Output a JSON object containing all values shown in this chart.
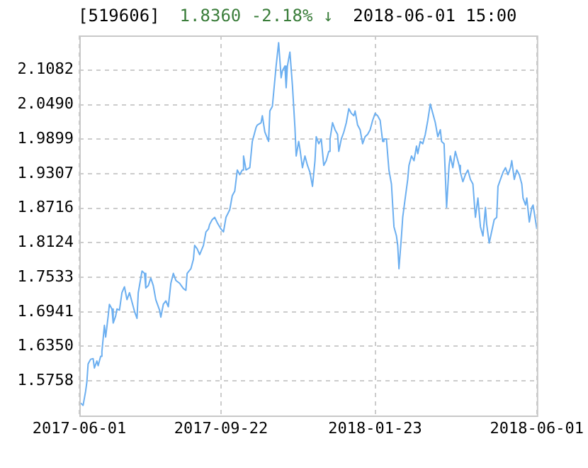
{
  "chart_data": {
    "type": "line",
    "title": "[519606]",
    "subtitle": "1.8360  -2.18% ↓",
    "annotations": [
      "2018-06-01 15:00"
    ],
    "xlim": [
      "2017-06-01",
      "2018-06-01"
    ],
    "xticks": [
      "2017-06-01",
      "2017-09-22",
      "2018-01-23",
      "2018-06-01"
    ],
    "ylim": [
      1.5166,
      2.1674
    ],
    "yticks": [
      1.5758,
      {
        "value": 1.635,
        "label": "1.6350"
      },
      1.6941,
      1.7533,
      1.8124,
      1.8716,
      1.9307,
      1.9899,
      {
        "value": 2.049,
        "label": "2.0490"
      },
      2.1082
    ],
    "grid": true,
    "marker": "none",
    "line_style": "solid",
    "series": [
      {
        "color": "#6caff0",
        "x": [
          "2017-06-02",
          "2017-06-04",
          "2017-06-06",
          "2017-06-07",
          "2017-06-08",
          "2017-06-10",
          "2017-06-12",
          "2017-06-13",
          "2017-06-15",
          "2017-06-16",
          "2017-06-18",
          "2017-06-19",
          "2017-06-21",
          "2017-06-22",
          "2017-06-24",
          "2017-06-25",
          "2017-06-27",
          "2017-06-28",
          "2017-06-30",
          "2017-07-01",
          "2017-07-03",
          "2017-07-05",
          "2017-07-07",
          "2017-07-09",
          "2017-07-11",
          "2017-07-12",
          "2017-07-15",
          "2017-07-17",
          "2017-07-18",
          "2017-07-21",
          "2017-07-23",
          "2017-07-24",
          "2017-07-26",
          "2017-07-28",
          "2017-07-30",
          "2017-08-01",
          "2017-08-04",
          "2017-08-05",
          "2017-08-07",
          "2017-08-09",
          "2017-08-11",
          "2017-08-13",
          "2017-08-15",
          "2017-08-17",
          "2017-08-20",
          "2017-08-23",
          "2017-08-25",
          "2017-08-26",
          "2017-08-29",
          "2017-08-31",
          "2017-09-01",
          "2017-09-03",
          "2017-09-05",
          "2017-09-08",
          "2017-09-10",
          "2017-09-12",
          "2017-09-13",
          "2017-09-15",
          "2017-09-17",
          "2017-09-19",
          "2017-09-22",
          "2017-09-24",
          "2017-09-26",
          "2017-09-29",
          "2017-10-01",
          "2017-10-03",
          "2017-10-05",
          "2017-10-07",
          "2017-10-09",
          "2017-10-10",
          "2017-10-12",
          "2017-10-15",
          "2017-10-17",
          "2017-10-20",
          "2017-10-21",
          "2017-10-24",
          "2017-10-25",
          "2017-10-27",
          "2017-10-30",
          "2017-10-31",
          "2017-11-02",
          "2017-11-05",
          "2017-11-07",
          "2017-11-09",
          "2017-11-10",
          "2017-11-12",
          "2017-11-13",
          "2017-11-14",
          "2017-11-16",
          "2017-11-18",
          "2017-11-20",
          "2017-11-21",
          "2017-11-23",
          "2017-11-24",
          "2017-11-26",
          "2017-11-28",
          "2017-11-30",
          "2017-12-02",
          "2017-12-04",
          "2017-12-06",
          "2017-12-07",
          "2017-12-09",
          "2017-12-11",
          "2017-12-13",
          "2017-12-15",
          "2017-12-17",
          "2017-12-18",
          "2017-12-20",
          "2017-12-22",
          "2017-12-24",
          "2017-12-25",
          "2017-12-27",
          "2017-12-29",
          "2017-12-31",
          "2018-01-02",
          "2018-01-04",
          "2018-01-06",
          "2018-01-07",
          "2018-01-09",
          "2018-01-11",
          "2018-01-13",
          "2018-01-15",
          "2018-01-17",
          "2018-01-19",
          "2018-01-21",
          "2018-01-23",
          "2018-01-25",
          "2018-01-27",
          "2018-01-29",
          "2018-01-30",
          "2018-02-01",
          "2018-02-03",
          "2018-02-05",
          "2018-02-07",
          "2018-02-09",
          "2018-02-10",
          "2018-02-11",
          "2018-02-13",
          "2018-02-14",
          "2018-02-16",
          "2018-02-18",
          "2018-02-19",
          "2018-02-21",
          "2018-02-23",
          "2018-02-25",
          "2018-02-26",
          "2018-02-28",
          "2018-03-02",
          "2018-03-04",
          "2018-03-06",
          "2018-03-08",
          "2018-03-10",
          "2018-03-12",
          "2018-03-14",
          "2018-03-16",
          "2018-03-17",
          "2018-03-19",
          "2018-03-21",
          "2018-03-23",
          "2018-03-24",
          "2018-03-26",
          "2018-03-28",
          "2018-03-31",
          "2018-04-01",
          "2018-04-03",
          "2018-04-05",
          "2018-04-07",
          "2018-04-09",
          "2018-04-11",
          "2018-04-13",
          "2018-04-15",
          "2018-04-17",
          "2018-04-19",
          "2018-04-21",
          "2018-04-22",
          "2018-04-24",
          "2018-04-26",
          "2018-04-28",
          "2018-04-30",
          "2018-05-01",
          "2018-05-03",
          "2018-05-05",
          "2018-05-07",
          "2018-05-09",
          "2018-05-11",
          "2018-05-12",
          "2018-05-14",
          "2018-05-16",
          "2018-05-18",
          "2018-05-20",
          "2018-05-21",
          "2018-05-23",
          "2018-05-24",
          "2018-05-26",
          "2018-05-28",
          "2018-05-29",
          "2018-06-01"
        ],
        "values": [
          1.538,
          1.534,
          1.558,
          1.574,
          1.605,
          1.613,
          1.614,
          1.598,
          1.61,
          1.602,
          1.618,
          1.626,
          1.671,
          1.651,
          1.687,
          1.707,
          1.699,
          1.675,
          1.687,
          1.699,
          1.697,
          1.727,
          1.737,
          1.715,
          1.727,
          1.719,
          1.695,
          1.683,
          1.727,
          1.764,
          1.76,
          1.735,
          1.739,
          1.752,
          1.739,
          1.715,
          1.697,
          1.685,
          1.707,
          1.713,
          1.703,
          1.743,
          1.76,
          1.748,
          1.743,
          1.734,
          1.731,
          1.76,
          1.768,
          1.784,
          1.808,
          1.802,
          1.792,
          1.808,
          1.831,
          1.836,
          1.844,
          1.852,
          1.856,
          1.847,
          1.836,
          1.831,
          1.856,
          1.869,
          1.893,
          1.901,
          1.937,
          1.929,
          1.937,
          1.961,
          1.937,
          1.941,
          1.986,
          2.01,
          2.014,
          2.018,
          2.03,
          2.002,
          1.986,
          2.038,
          2.046,
          2.115,
          2.155,
          2.095,
          2.107,
          2.115,
          2.078,
          2.115,
          2.139,
          2.082,
          2.01,
          1.961,
          1.986,
          1.973,
          1.941,
          1.961,
          1.945,
          1.933,
          1.909,
          1.953,
          1.994,
          1.982,
          1.99,
          1.945,
          1.953,
          1.969,
          1.99,
          2.018,
          2.006,
          1.998,
          1.969,
          1.99,
          2.002,
          2.018,
          2.042,
          2.034,
          2.03,
          2.038,
          2.014,
          2.006,
          1.982,
          1.994,
          1.998,
          2.006,
          2.022,
          2.034,
          2.03,
          2.022,
          1.986,
          1.99,
          1.99,
          1.937,
          1.913,
          1.84,
          1.824,
          1.808,
          1.768,
          1.824,
          1.856,
          1.889,
          1.921,
          1.945,
          1.961,
          1.953,
          1.978,
          1.965,
          1.986,
          1.982,
          1.998,
          2.022,
          2.05,
          2.034,
          2.018,
          1.994,
          2.006,
          1.986,
          1.982,
          1.873,
          1.945,
          1.961,
          1.941,
          1.969,
          1.945,
          1.933,
          1.917,
          1.929,
          1.937,
          1.921,
          1.913,
          1.856,
          1.889,
          1.84,
          1.824,
          1.873,
          1.844,
          1.812,
          1.832,
          1.852,
          1.856,
          1.909,
          1.921,
          1.933,
          1.941,
          1.929,
          1.941,
          1.953,
          1.921,
          1.937,
          1.929,
          1.913,
          1.889,
          1.877,
          1.889,
          1.848,
          1.873,
          1.877,
          1.836
        ]
      }
    ]
  }
}
